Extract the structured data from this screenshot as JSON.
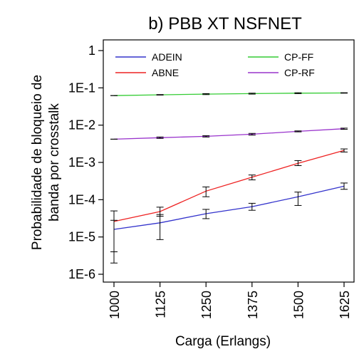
{
  "chart_data": {
    "type": "line",
    "title": "b) PBB XT NSFNET",
    "xlabel": "Carga (Erlangs)",
    "ylabel_lines": [
      "Probabilidade de bloqueio de",
      "banda por crosstalk"
    ],
    "x": [
      1000,
      1125,
      1250,
      1375,
      1500,
      1625
    ],
    "x_tick_labels": [
      "1000",
      "1125",
      "1250",
      "1375",
      "1500",
      "1625"
    ],
    "y_scale": "log",
    "ylim": [
      5e-07,
      1.5
    ],
    "y_ticks": [
      1,
      0.1,
      0.01,
      0.001,
      0.0001,
      1e-05,
      1e-06
    ],
    "y_tick_labels": [
      "1",
      "1E-1",
      "1E-2",
      "1E-3",
      "1E-4",
      "1E-5",
      "1E-6"
    ],
    "legend_position": "top",
    "series": [
      {
        "name": "ADEIN",
        "color": "#3333cc",
        "values": [
          1.6e-05,
          2.4e-05,
          4.2e-05,
          6.5e-05,
          0.00012,
          0.00023
        ],
        "err_low": [
          2e-06,
          8.5e-06,
          3.1e-05,
          5.2e-05,
          7e-05,
          0.00019
        ],
        "err_high": [
          5e-05,
          4e-05,
          5.5e-05,
          8e-05,
          0.00016,
          0.00028
        ]
      },
      {
        "name": "ABNE",
        "color": "#ee2222",
        "values": [
          2.6e-05,
          4.8e-05,
          0.00017,
          0.0004,
          0.00095,
          0.0021
        ],
        "err_low": [
          4e-06,
          3.6e-05,
          0.00012,
          0.00034,
          0.00082,
          0.0019
        ],
        "err_high": [
          2.8e-05,
          6.3e-05,
          0.00022,
          0.00046,
          0.00112,
          0.0023
        ]
      },
      {
        "name": "CP-FF",
        "color": "#33cc33",
        "values": [
          0.062,
          0.065,
          0.068,
          0.07,
          0.072,
          0.073
        ],
        "err_low": [
          0.062,
          0.064,
          0.066,
          0.068,
          0.07,
          0.072
        ],
        "err_high": [
          0.062,
          0.066,
          0.07,
          0.072,
          0.074,
          0.074
        ]
      },
      {
        "name": "CP-RF",
        "color": "#9933cc",
        "values": [
          0.0042,
          0.0046,
          0.005,
          0.0057,
          0.0068,
          0.008
        ],
        "err_low": [
          0.0042,
          0.0044,
          0.0048,
          0.0054,
          0.0066,
          0.0077
        ],
        "err_high": [
          0.0042,
          0.0048,
          0.0052,
          0.006,
          0.007,
          0.0083
        ]
      }
    ]
  }
}
